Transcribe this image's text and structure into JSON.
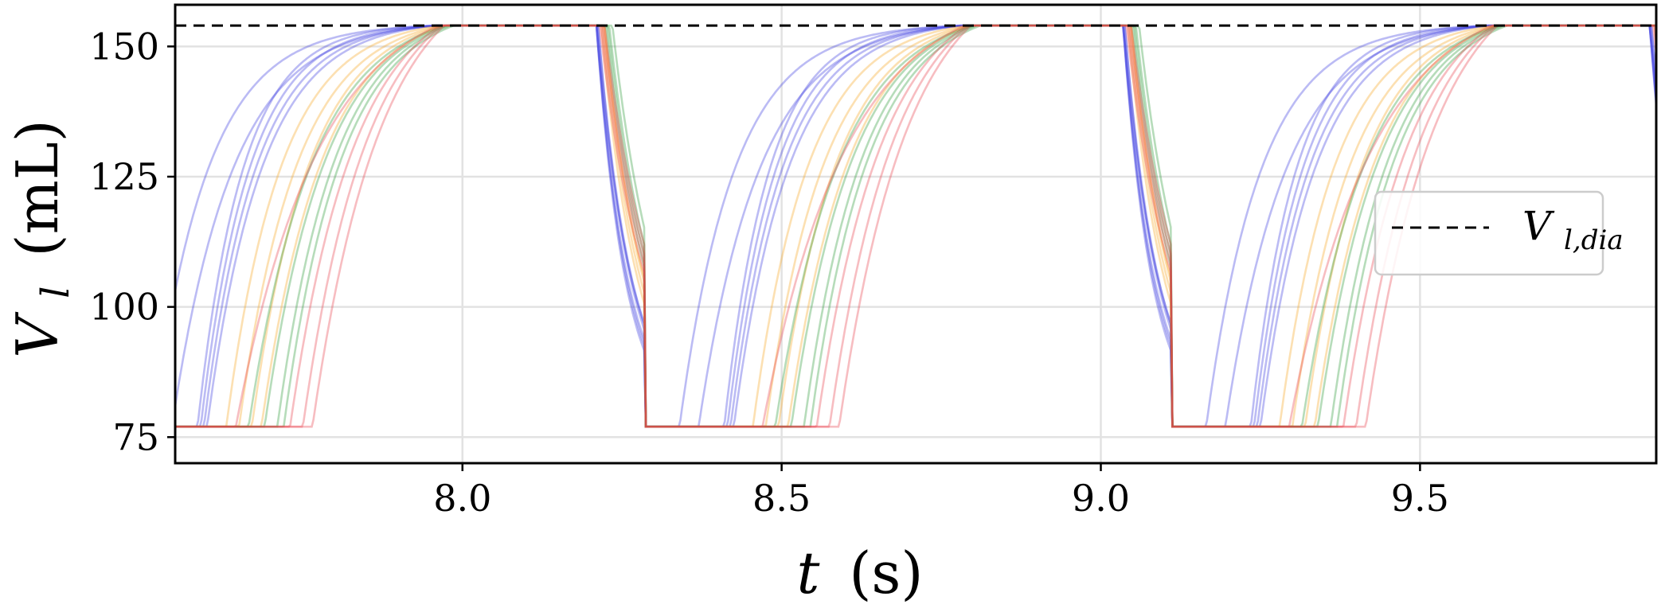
{
  "chart_data": {
    "type": "line",
    "title": "",
    "xlabel_var": "t",
    "xlabel_unit": "(s)",
    "ylabel_var": "V",
    "ylabel_sub": "l",
    "ylabel_unit": "(mL)",
    "xlim": [
      7.55,
      9.87
    ],
    "ylim": [
      70,
      158
    ],
    "xticks": [
      8.0,
      8.5,
      9.0,
      9.5
    ],
    "xtick_labels": [
      "8.0",
      "8.5",
      "9.0",
      "9.5"
    ],
    "yticks": [
      75,
      100,
      125,
      150
    ],
    "ytick_labels": [
      "75",
      "100",
      "125",
      "150"
    ],
    "grid": true,
    "reference_line": {
      "y": 154,
      "style": "dashed",
      "color": "#000000"
    },
    "legend": {
      "placement": "center-right",
      "entries": [
        {
          "label_main": "V",
          "label_sub": "l,dia",
          "style": "dashed",
          "color": "#000000"
        }
      ]
    },
    "cycle": {
      "period": 0.825,
      "v_min": 77,
      "v_max": 154,
      "description_groups": [
        "blue",
        "orange",
        "green",
        "red"
      ]
    },
    "series": [
      {
        "group": "blue",
        "color": "#3b3bdf",
        "fill_end_offset": 0.055,
        "eject_start_offset": 0.06,
        "tau": 0.085
      },
      {
        "group": "blue",
        "color": "#3b3bdf",
        "fill_end_offset": 0.085,
        "eject_start_offset": 0.06,
        "tau": 0.095
      },
      {
        "group": "blue",
        "color": "#3b3bdf",
        "fill_end_offset": 0.125,
        "eject_start_offset": 0.06,
        "tau": 0.07
      },
      {
        "group": "blue",
        "color": "#3b3bdf",
        "fill_end_offset": 0.13,
        "eject_start_offset": 0.065,
        "tau": 0.075
      },
      {
        "group": "blue",
        "color": "#3b3bdf",
        "fill_end_offset": 0.135,
        "eject_start_offset": 0.065,
        "tau": 0.08
      },
      {
        "group": "blue",
        "color": "#3b3bdf",
        "fill_end_offset": 0.14,
        "eject_start_offset": 0.06,
        "tau": 0.085
      },
      {
        "group": "orange",
        "color": "#f5a623",
        "fill_end_offset": 0.17,
        "eject_start_offset": 0.075,
        "tau": 0.085
      },
      {
        "group": "orange",
        "color": "#f5a623",
        "fill_end_offset": 0.19,
        "eject_start_offset": 0.08,
        "tau": 0.09
      },
      {
        "group": "orange",
        "color": "#f5a623",
        "fill_end_offset": 0.21,
        "eject_start_offset": 0.085,
        "tau": 0.09
      },
      {
        "group": "orange",
        "color": "#f5a623",
        "fill_end_offset": 0.225,
        "eject_start_offset": 0.085,
        "tau": 0.095
      },
      {
        "group": "green",
        "color": "#2e9a3a",
        "fill_end_offset": 0.205,
        "eject_start_offset": 0.09,
        "tau": 0.1
      },
      {
        "group": "green",
        "color": "#2e9a3a",
        "fill_end_offset": 0.23,
        "eject_start_offset": 0.095,
        "tau": 0.095
      },
      {
        "group": "green",
        "color": "#2e9a3a",
        "fill_end_offset": 0.25,
        "eject_start_offset": 0.1,
        "tau": 0.09
      },
      {
        "group": "green",
        "color": "#2e9a3a",
        "fill_end_offset": 0.26,
        "eject_start_offset": 0.11,
        "tau": 0.09
      },
      {
        "group": "red",
        "color": "#e8414d",
        "fill_end_offset": 0.185,
        "eject_start_offset": 0.07,
        "tau": 0.13
      },
      {
        "group": "red",
        "color": "#e8414d",
        "fill_end_offset": 0.27,
        "eject_start_offset": 0.075,
        "tau": 0.1
      },
      {
        "group": "red",
        "color": "#e8414d",
        "fill_end_offset": 0.29,
        "eject_start_offset": 0.08,
        "tau": 0.1
      },
      {
        "group": "red",
        "color": "#e8414d",
        "fill_end_offset": 0.305,
        "eject_start_offset": 0.085,
        "tau": 0.105
      }
    ]
  }
}
